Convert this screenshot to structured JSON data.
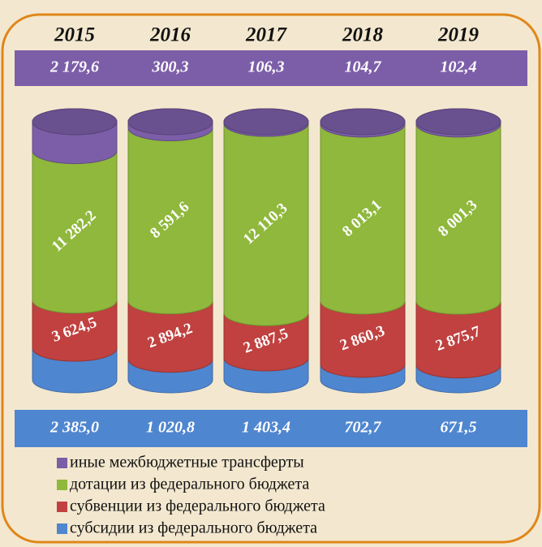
{
  "chart_data": {
    "type": "stacked_cylinder",
    "categories": [
      "2015",
      "2016",
      "2017",
      "2018",
      "2019"
    ],
    "series": [
      {
        "name": "субсидии из федерального бюджета",
        "color": "#4f86d0",
        "values": [
          2385.0,
          1020.8,
          1403.4,
          702.7,
          671.5
        ],
        "value_labels": [
          "2 385,0",
          "1 020,8",
          "1 403,4",
          "702,7",
          "671,5"
        ]
      },
      {
        "name": "субвенции из федерального бюджета",
        "color": "#c0413f",
        "values": [
          3624.5,
          2894.2,
          2887.5,
          2860.3,
          2875.7
        ],
        "value_labels": [
          "3 624,5",
          "2 894,2",
          "2 887,5",
          "2 860,3",
          "2 875,7"
        ]
      },
      {
        "name": "дотации из федерального бюджета",
        "color": "#8fb83c",
        "values": [
          11282.2,
          8591.6,
          12110.3,
          8013.1,
          8001.3
        ],
        "value_labels": [
          "11 282,2",
          "8 591,6",
          "12 110,3",
          "8 013,1",
          "8 001,3"
        ]
      },
      {
        "name": "иные межбюджетные трансферты",
        "color": "#7c5ea8",
        "values": [
          2179.6,
          300.3,
          106.3,
          104.7,
          102.4
        ],
        "value_labels": [
          "2 179,6",
          "300,3",
          "106,3",
          "104,7",
          "102,4"
        ]
      }
    ]
  }
}
